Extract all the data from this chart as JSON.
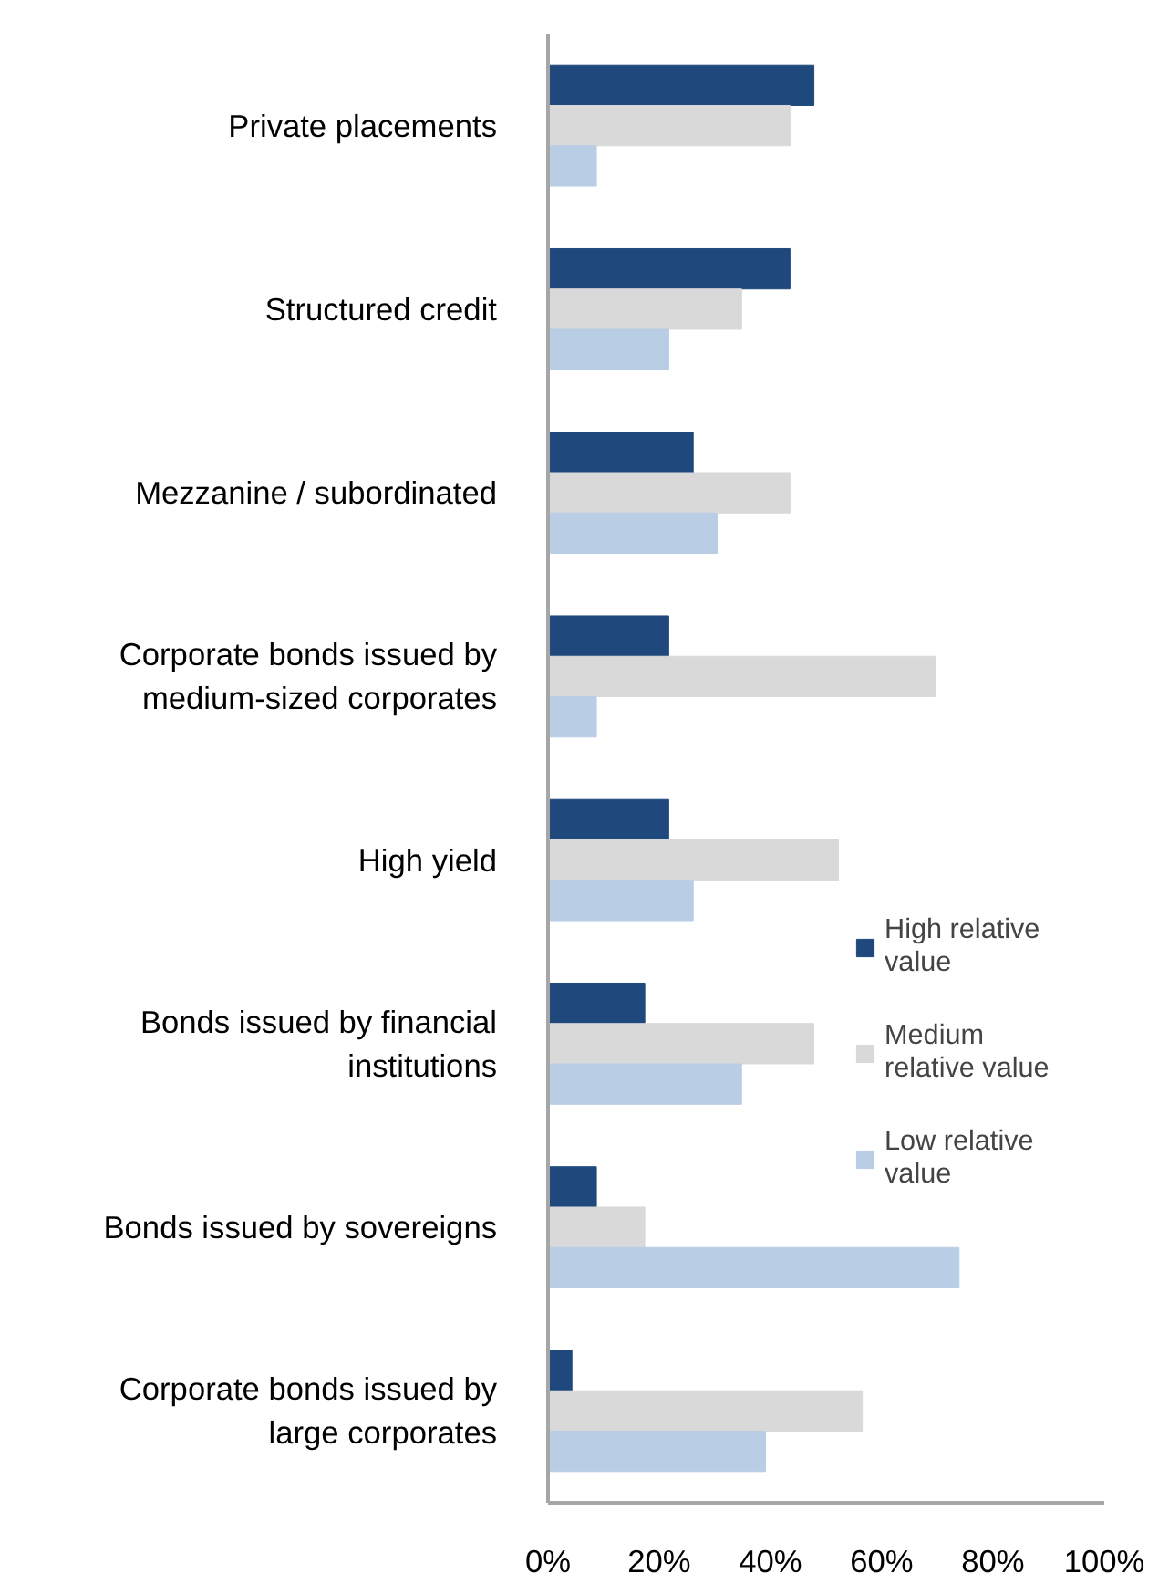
{
  "chart_data": {
    "type": "bar",
    "orientation": "horizontal",
    "categories": [
      "Private placements",
      "Structured credit",
      "Mezzanine / subordinated",
      "Corporate bonds issued by medium-sized corporates",
      "High yield",
      "Bonds issued by financial institutions",
      "Bonds issued by sovereigns",
      "Corporate bonds issued by large corporates"
    ],
    "series": [
      {
        "name": "High relative value",
        "color": "#1f497d",
        "values": [
          47.8,
          43.5,
          26.1,
          21.7,
          21.7,
          17.4,
          8.7,
          4.3
        ]
      },
      {
        "name": "Medium relative value",
        "color": "#d9d9d9",
        "values": [
          43.5,
          34.8,
          43.5,
          69.6,
          52.2,
          47.8,
          17.4,
          56.5
        ]
      },
      {
        "name": "Low relative value",
        "color": "#b9cde5",
        "values": [
          8.7,
          21.7,
          30.4,
          8.7,
          26.1,
          34.8,
          73.9,
          39.1
        ]
      }
    ],
    "xlim": [
      0,
      100
    ],
    "xticks": [
      {
        "value": 0,
        "label": "0%"
      },
      {
        "value": 20,
        "label": "20%"
      },
      {
        "value": 40,
        "label": "40%"
      },
      {
        "value": 60,
        "label": "60%"
      },
      {
        "value": 80,
        "label": "80%"
      },
      {
        "value": 100,
        "label": "100%"
      }
    ],
    "grid": false,
    "legend": "right"
  }
}
